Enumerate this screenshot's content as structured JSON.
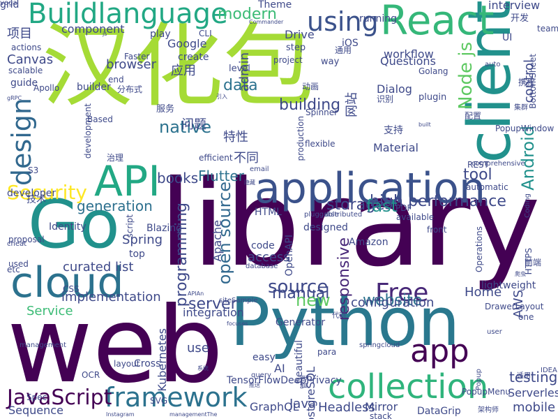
{
  "palette": {
    "dark_purple": "#440154",
    "indigo": "#3b528b",
    "teal": "#21918c",
    "green": "#5ec962",
    "lime": "#a5db36",
    "yellow": "#fde725"
  },
  "words": [
    {
      "text": "library",
      "color": "#440154",
      "vertical": false
    },
    {
      "text": "web",
      "color": "#440154",
      "vertical": false
    },
    {
      "text": "汉化包",
      "color": "#a5db36",
      "vertical": false
    },
    {
      "text": "Python",
      "color": "#2a788e",
      "vertical": false
    },
    {
      "text": "Go",
      "color": "#21918c",
      "vertical": false
    },
    {
      "text": "client",
      "color": "#21918c",
      "vertical": true
    },
    {
      "text": "application",
      "color": "#3b528b",
      "vertical": false
    },
    {
      "text": "cloud",
      "color": "#2c728e",
      "vertical": false
    },
    {
      "text": "API",
      "color": "#22a884",
      "vertical": false
    },
    {
      "text": "React",
      "color": "#35b779",
      "vertical": false
    },
    {
      "text": "Buildlanguage",
      "color": "#22a884",
      "vertical": false
    },
    {
      "text": "collection",
      "color": "#2fb47c",
      "vertical": false
    },
    {
      "text": "app",
      "color": "#440154",
      "vertical": false
    },
    {
      "text": "framework",
      "color": "#2c728e",
      "vertical": false
    },
    {
      "text": "using",
      "color": "#3b528b",
      "vertical": false
    },
    {
      "text": "design",
      "color": "#31688e",
      "vertical": true
    },
    {
      "text": "Security",
      "color": "#fde725",
      "vertical": false
    },
    {
      "text": "JavaScript",
      "color": "#440154",
      "vertical": false
    },
    {
      "text": "Free",
      "color": "#482878",
      "vertical": false
    },
    {
      "text": "modern",
      "color": "#3bbb75",
      "vertical": false
    },
    {
      "text": "Node js",
      "color": "#5ec962",
      "vertical": true
    },
    {
      "text": "source",
      "color": "#3e4989",
      "vertical": false
    },
    {
      "text": "building",
      "color": "#3e4989",
      "vertical": false
    },
    {
      "text": "native",
      "color": "#2c728e",
      "vertical": false
    },
    {
      "text": "high performance",
      "color": "#3e4989",
      "vertical": false
    },
    {
      "text": "generation",
      "color": "#2d708e",
      "vertical": false
    },
    {
      "text": "storage",
      "color": "#3e4989",
      "vertical": false
    },
    {
      "text": "fast",
      "color": "#21918c",
      "vertical": false
    },
    {
      "text": "Android",
      "color": "#21918c",
      "vertical": true
    },
    {
      "text": "open source",
      "color": "#31688e",
      "vertical": true
    },
    {
      "text": "programming",
      "color": "#3e4989",
      "vertical": true
    },
    {
      "text": "manual",
      "color": "#3e4989",
      "vertical": false
    },
    {
      "text": "website",
      "color": "#2c728e",
      "vertical": false
    },
    {
      "text": "responsive",
      "color": "#482878",
      "vertical": true
    },
    {
      "text": "server",
      "color": "#3e4989",
      "vertical": false
    },
    {
      "text": "data",
      "color": "#2c728e",
      "vertical": false
    },
    {
      "text": "Flutter",
      "color": "#2c728e",
      "vertical": false
    },
    {
      "text": "books",
      "color": "#3e4989",
      "vertical": false
    },
    {
      "text": "tool",
      "color": "#3e4989",
      "vertical": false
    },
    {
      "text": "testing",
      "color": "#3e4989",
      "vertical": false
    },
    {
      "text": "mobile",
      "color": "#3e4989",
      "vertical": false
    },
    {
      "text": "Home",
      "color": "#3e4989",
      "vertical": false
    },
    {
      "text": "new",
      "color": "#5ec962",
      "vertical": false
    },
    {
      "text": "configuration",
      "color": "#3e4989",
      "vertical": false
    },
    {
      "text": "curated list",
      "color": "#3e4989",
      "vertical": false
    },
    {
      "text": "implementation",
      "color": "#3e4989",
      "vertical": false
    },
    {
      "text": "Service",
      "color": "#3bbb75",
      "vertical": false
    },
    {
      "text": "Spring",
      "color": "#3e4989",
      "vertical": false
    },
    {
      "text": "access",
      "color": "#3e4989",
      "vertical": false
    },
    {
      "text": "Canvas",
      "color": "#3e4989",
      "vertical": false
    },
    {
      "text": "browser",
      "color": "#3e4989",
      "vertical": false
    },
    {
      "text": "component",
      "color": "#3e4989",
      "vertical": false
    },
    {
      "text": "workflow",
      "color": "#3e4989",
      "vertical": false
    },
    {
      "text": "Questions",
      "color": "#3e4989",
      "vertical": false
    },
    {
      "text": "interview",
      "color": "#3e4989",
      "vertical": false
    },
    {
      "text": "Drive",
      "color": "#3e4989",
      "vertical": false
    },
    {
      "text": "Google",
      "color": "#3e4989",
      "vertical": false
    },
    {
      "text": "Material",
      "color": "#3e4989",
      "vertical": false
    },
    {
      "text": "Dialog",
      "color": "#3e4989",
      "vertical": false
    },
    {
      "text": "use",
      "color": "#3e4989",
      "vertical": false
    },
    {
      "text": "GraphQL",
      "color": "#3e4989",
      "vertical": false
    },
    {
      "text": "Java",
      "color": "#3e4989",
      "vertical": false
    },
    {
      "text": "Headless",
      "color": "#3e4989",
      "vertical": false
    },
    {
      "text": "Mirror",
      "color": "#3e4989",
      "vertical": false
    },
    {
      "text": "Sequence",
      "color": "#3e4989",
      "vertical": false
    },
    {
      "text": "项目",
      "color": "#3e4989",
      "vertical": false
    },
    {
      "text": "问题",
      "color": "#3e4989",
      "vertical": false
    },
    {
      "text": "特性",
      "color": "#3e4989",
      "vertical": false
    },
    {
      "text": "不同",
      "color": "#3e4989",
      "vertical": false
    },
    {
      "text": "应用",
      "color": "#3e4989",
      "vertical": false
    },
    {
      "text": "网站",
      "color": "#3e4989",
      "vertical": true
    },
    {
      "text": "AWS",
      "color": "#3e4989",
      "vertical": true
    },
    {
      "text": "AI",
      "color": "#3e4989",
      "vertical": false
    },
    {
      "text": "control",
      "color": "#3e4989",
      "vertical": true
    },
    {
      "text": "admin",
      "color": "#3e4989",
      "vertical": true
    },
    {
      "text": "Apache",
      "color": "#3e4989",
      "vertical": true
    },
    {
      "text": "Kubernetes",
      "color": "#3e4989",
      "vertical": true
    },
    {
      "text": "Serverless",
      "color": "#3e4989",
      "vertical": false
    },
    {
      "text": "PostgreSQL",
      "color": "#3e4989",
      "vertical": true
    },
    {
      "text": "Amazon",
      "color": "#3e4989",
      "vertical": false
    },
    {
      "text": "Identity",
      "color": "#3e4989",
      "vertical": false
    },
    {
      "text": "Blazing",
      "color": "#3e4989",
      "vertical": false
    },
    {
      "text": "code",
      "color": "#3e4989",
      "vertical": false
    },
    {
      "text": "integration",
      "color": "#3e4989",
      "vertical": false
    },
    {
      "text": "Generator",
      "color": "#3e4989",
      "vertical": false
    },
    {
      "text": "easy",
      "color": "#3e4989",
      "vertical": false
    },
    {
      "text": "PopupWindow",
      "color": "#3e4989",
      "vertical": false
    },
    {
      "text": "DrawerLayout",
      "color": "#3e4989",
      "vertical": false
    },
    {
      "text": "PopupMenu",
      "color": "#3e4989",
      "vertical": false
    },
    {
      "text": "HTML",
      "color": "#3e4989",
      "vertical": false
    },
    {
      "text": "PDF",
      "color": "#3e4989",
      "vertical": false
    },
    {
      "text": "OCR",
      "color": "#3e4989",
      "vertical": false
    },
    {
      "text": "SVG",
      "color": "#3e4989",
      "vertical": false
    },
    {
      "text": "CSS",
      "color": "#3e4989",
      "vertical": false
    },
    {
      "text": "S3",
      "color": "#3e4989",
      "vertical": false
    },
    {
      "text": "REST",
      "color": "#3e4989",
      "vertical": false
    },
    {
      "text": "Spec",
      "color": "#3e4989",
      "vertical": false
    },
    {
      "text": "grid",
      "color": "#3e4989",
      "vertical": false
    },
    {
      "text": "Theme",
      "color": "#3e4989",
      "vertical": false
    },
    {
      "text": "running",
      "color": "#3e4989",
      "vertical": false
    },
    {
      "text": "开发",
      "color": "#3e4989",
      "vertical": false
    },
    {
      "text": "team",
      "color": "#3e4989",
      "vertical": false
    },
    {
      "text": "play",
      "color": "#3e4989",
      "vertical": false
    },
    {
      "text": "CLI",
      "color": "#3e4989",
      "vertical": false
    },
    {
      "text": "step",
      "color": "#3e4989",
      "vertical": false
    },
    {
      "text": "iOS",
      "color": "#3e4989",
      "vertical": false
    },
    {
      "text": "UI",
      "color": "#3e4989",
      "vertical": false
    },
    {
      "text": "actions",
      "color": "#3e4989",
      "vertical": false
    },
    {
      "text": "create",
      "color": "#3e4989",
      "vertical": false
    },
    {
      "text": "Faster",
      "color": "#3e4989",
      "vertical": false
    },
    {
      "text": "scalable",
      "color": "#3e4989",
      "vertical": false
    },
    {
      "text": "level",
      "color": "#3e4989",
      "vertical": false
    },
    {
      "text": "project",
      "color": "#3e4989",
      "vertical": false
    },
    {
      "text": "way",
      "color": "#3e4989",
      "vertical": false
    },
    {
      "text": "通用",
      "color": "#3e4989",
      "vertical": false
    },
    {
      "text": "auto",
      "color": "#3e4989",
      "vertical": false
    },
    {
      "text": "BottomSheet",
      "color": "#3e4989",
      "vertical": true
    },
    {
      "text": "Golang",
      "color": "#3e4989",
      "vertical": false
    },
    {
      "text": "guide",
      "color": "#3e4989",
      "vertical": false
    },
    {
      "text": "end",
      "color": "#3e4989",
      "vertical": false
    },
    {
      "text": "分布式",
      "color": "#3e4989",
      "vertical": false
    },
    {
      "text": "动画",
      "color": "#3e4989",
      "vertical": false
    },
    {
      "text": "plugin",
      "color": "#3e4989",
      "vertical": false
    },
    {
      "text": "识别",
      "color": "#3e4989",
      "vertical": false
    },
    {
      "text": "携程",
      "color": "#3e4989",
      "vertical": false
    },
    {
      "text": "builder",
      "color": "#3e4989",
      "vertical": false
    },
    {
      "text": "development",
      "color": "#3e4989",
      "vertical": true
    },
    {
      "text": "服务",
      "color": "#3e4989",
      "vertical": false
    },
    {
      "text": "Based",
      "color": "#3e4989",
      "vertical": false
    },
    {
      "text": "Apollo",
      "color": "#3e4989",
      "vertical": false
    },
    {
      "text": "production",
      "color": "#3e4989",
      "vertical": true
    },
    {
      "text": "Spinner",
      "color": "#3e4989",
      "vertical": false
    },
    {
      "text": "支持",
      "color": "#3e4989",
      "vertical": false
    },
    {
      "text": "配置",
      "color": "#3e4989",
      "vertical": false
    },
    {
      "text": "flexible",
      "color": "#3e4989",
      "vertical": false
    },
    {
      "text": "治理",
      "color": "#3e4989",
      "vertical": false
    },
    {
      "text": "efficient",
      "color": "#3e4989",
      "vertical": false
    },
    {
      "text": "email",
      "color": "#3e4989",
      "vertical": false
    },
    {
      "text": "comprehensive",
      "color": "#3e4989",
      "vertical": false
    },
    {
      "text": "automatic",
      "color": "#3e4989",
      "vertical": false
    },
    {
      "text": "集群",
      "color": "#3e4989",
      "vertical": false
    },
    {
      "text": "Coding",
      "color": "#3e4989",
      "vertical": true
    },
    {
      "text": "available",
      "color": "#3e4989",
      "vertical": false
    },
    {
      "text": "技术",
      "color": "#3e4989",
      "vertical": false
    },
    {
      "text": "developer",
      "color": "#3e4989",
      "vertical": false
    },
    {
      "text": "script",
      "color": "#3e4989",
      "vertical": true
    },
    {
      "text": "pluggable",
      "color": "#3e4989",
      "vertical": false
    },
    {
      "text": "distributed",
      "color": "#3e4989",
      "vertical": false
    },
    {
      "text": "front",
      "color": "#3e4989",
      "vertical": false
    },
    {
      "text": "top",
      "color": "#3e4989",
      "vertical": false
    },
    {
      "text": "proposal",
      "color": "#3e4989",
      "vertical": false
    },
    {
      "text": "used",
      "color": "#3e4989",
      "vertical": false
    },
    {
      "text": "etc",
      "color": "#3e4989",
      "vertical": false
    },
    {
      "text": "database",
      "color": "#3e4989",
      "vertical": false
    },
    {
      "text": "designed",
      "color": "#3e4989",
      "vertical": false
    },
    {
      "text": "Operations",
      "color": "#3e4989",
      "vertical": true
    },
    {
      "text": "OpenAPI",
      "color": "#3e4989",
      "vertical": true
    },
    {
      "text": "HTTPS",
      "color": "#3e4989",
      "vertical": true
    },
    {
      "text": "前端",
      "color": "#3e4989",
      "vertical": false
    },
    {
      "text": "爬虫",
      "color": "#3e4989",
      "vertical": false
    },
    {
      "text": "siteSample",
      "color": "#3e4989",
      "vertical": false
    },
    {
      "text": "lightweight",
      "color": "#3e4989",
      "vertical": false
    },
    {
      "text": "one",
      "color": "#3e4989",
      "vertical": false
    },
    {
      "text": "代码",
      "color": "#3e4989",
      "vertical": false
    },
    {
      "text": "user",
      "color": "#3e4989",
      "vertical": false
    },
    {
      "text": "management",
      "color": "#3e4989",
      "vertical": false
    },
    {
      "text": "layout",
      "color": "#3e4989",
      "vertical": false
    },
    {
      "text": "Cross",
      "color": "#3e4989",
      "vertical": false
    },
    {
      "text": "系统",
      "color": "#3e4989",
      "vertical": false
    },
    {
      "text": "query",
      "color": "#3e4989",
      "vertical": false
    },
    {
      "text": "para",
      "color": "#3e4989",
      "vertical": false
    },
    {
      "text": "beautiful",
      "color": "#3e4989",
      "vertical": true
    },
    {
      "text": "管理",
      "color": "#3e4989",
      "vertical": true
    },
    {
      "text": "springcloud",
      "color": "#3e4989",
      "vertical": false
    },
    {
      "text": "Popup",
      "color": "#3e4989",
      "vertical": true
    },
    {
      "text": "适用",
      "color": "#3e4989",
      "vertical": false
    },
    {
      "text": "IDEA",
      "color": "#3e4989",
      "vertical": false
    },
    {
      "text": "推送",
      "color": "#3e4989",
      "vertical": false
    },
    {
      "text": "DataGrip",
      "color": "#3e4989",
      "vertical": false
    },
    {
      "text": "架构师",
      "color": "#3e4989",
      "vertical": false
    },
    {
      "text": "stack",
      "color": "#3e4989",
      "vertical": false
    },
    {
      "text": "Instagram",
      "color": "#3e4989",
      "vertical": false
    },
    {
      "text": "managementThe",
      "color": "#3e4989",
      "vertical": false
    },
    {
      "text": "TensorFlowDeepPrivacy",
      "color": "#3e4989",
      "vertical": false
    },
    {
      "text": "js",
      "color": "#3e4989",
      "vertical": false
    },
    {
      "text": "Commander",
      "color": "#3e4989",
      "vertical": false
    },
    {
      "text": "引入",
      "color": "#3e4989",
      "vertical": false
    },
    {
      "text": "built",
      "color": "#3e4989",
      "vertical": false
    },
    {
      "text": "隐藏",
      "color": "#3e4989",
      "vertical": false
    },
    {
      "text": "cheat",
      "color": "#3e4989",
      "vertical": false
    },
    {
      "text": "gRPC",
      "color": "#3e4989",
      "vertical": false
    },
    {
      "text": "APIAn",
      "color": "#3e4989",
      "vertical": false
    },
    {
      "text": "focuses",
      "color": "#3e4989",
      "vertical": false
    },
    {
      "text": "vega",
      "color": "#3e4989",
      "vertical": false
    }
  ]
}
